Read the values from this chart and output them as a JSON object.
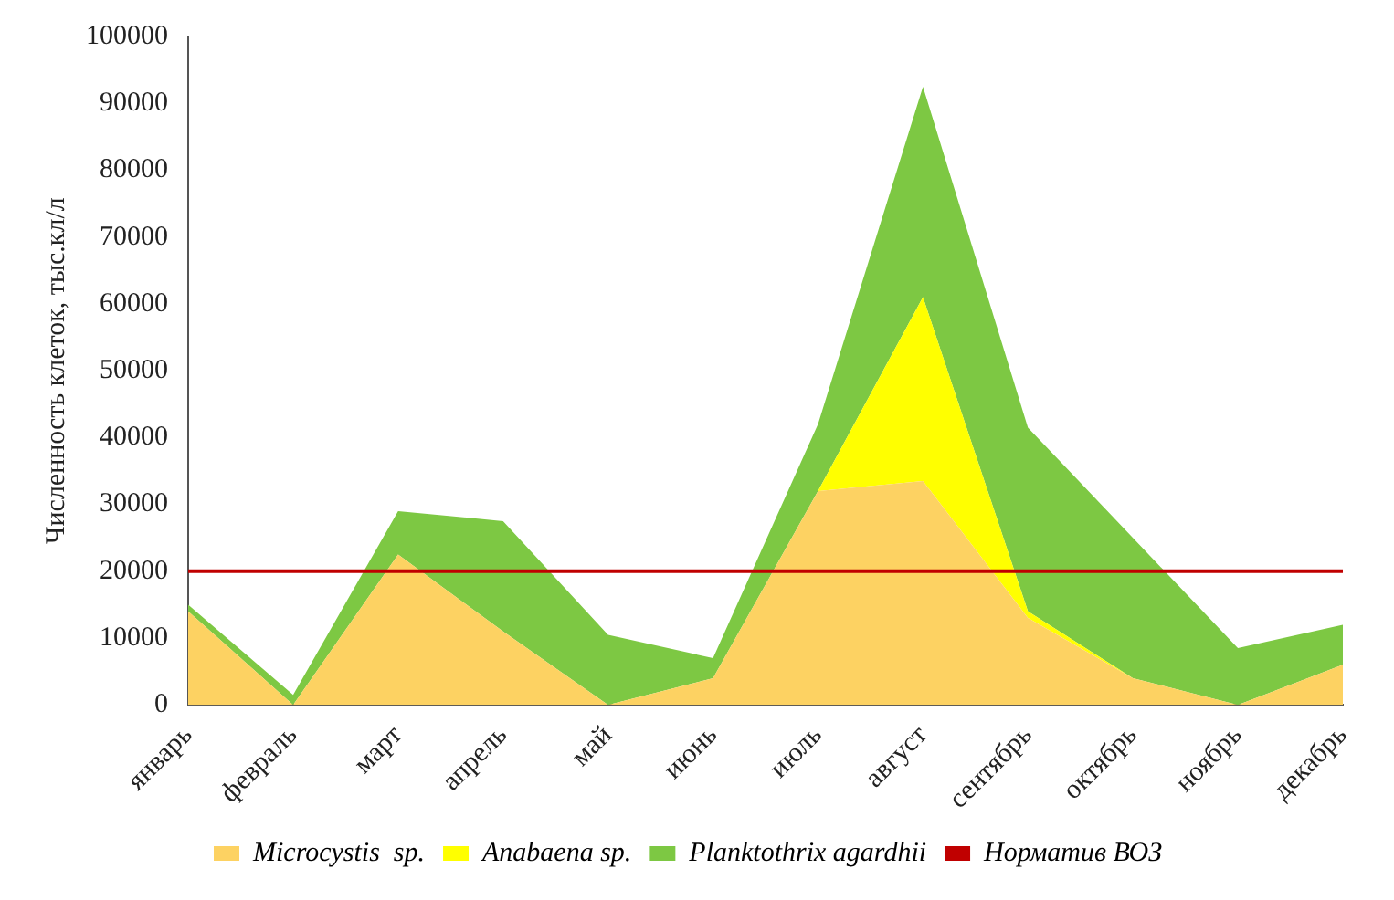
{
  "chart_data": {
    "type": "area",
    "stacked": true,
    "ylabel": "Численность клеток, тыс.кл/л",
    "categories": [
      "январь",
      "февраль",
      "март",
      "апрель",
      "май",
      "июнь",
      "июль",
      "август",
      "сентябрь",
      "октябрь",
      "ноябрь",
      "декабрь"
    ],
    "series": [
      {
        "name": "Microcystis  sp.",
        "color": "#fdd262",
        "values": [
          14000,
          0,
          22500,
          11000,
          0,
          4000,
          32000,
          33500,
          13000,
          4000,
          0,
          6000
        ]
      },
      {
        "name": "Anabaena sp.",
        "color": "#ffff00",
        "values": [
          0,
          0,
          0,
          0,
          0,
          0,
          0,
          27500,
          1000,
          0,
          0,
          0
        ]
      },
      {
        "name": "Planktothrix agardhii",
        "color": "#7dc843",
        "values": [
          1000,
          1500,
          6500,
          16500,
          10500,
          3000,
          10000,
          31500,
          27500,
          21000,
          8500,
          6000
        ]
      }
    ],
    "ref_lines": [
      {
        "axis": "y",
        "value": 20000,
        "label": "Норматив ВОЗ",
        "color": "#c00000"
      }
    ],
    "ylim": [
      0,
      100000
    ],
    "yticks": [
      0,
      10000,
      20000,
      30000,
      40000,
      50000,
      60000,
      70000,
      80000,
      90000,
      100000
    ],
    "grid": false,
    "legend": "bottom"
  }
}
